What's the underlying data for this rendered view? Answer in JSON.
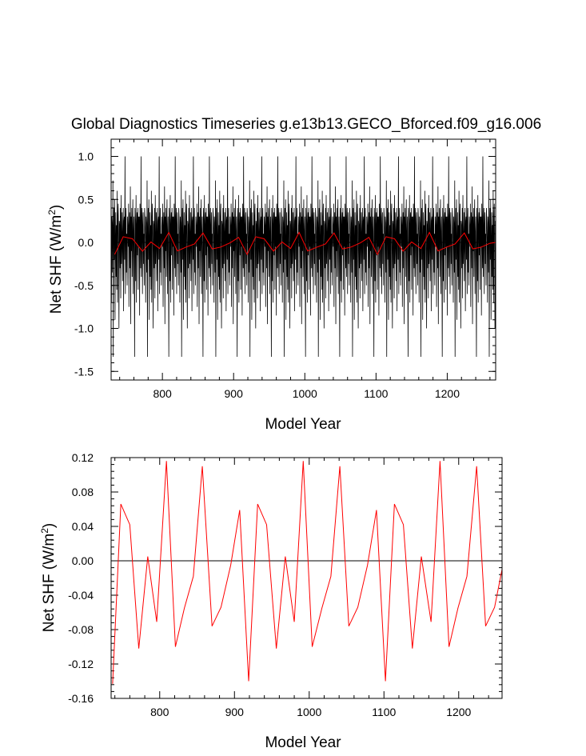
{
  "chart_data": [
    {
      "type": "line",
      "title": "Global Diagnostics Timeseries g.e13b13.GECO_Bforced.f09_g16.006",
      "xlabel": "Model Year",
      "ylabel": "Net SHF (W/m",
      "ylabel_sup": "2",
      "ylabel_close": ")",
      "xlim": [
        728,
        1268
      ],
      "ylim": [
        -1.6,
        1.2
      ],
      "x_ticks": [
        800,
        900,
        1000,
        1100,
        1200
      ],
      "x_tick_labels": [
        "800",
        "900",
        "1000",
        "1100",
        "1200"
      ],
      "y_ticks": [
        1.0,
        0.5,
        0.0,
        -0.5,
        -1.0,
        -1.5
      ],
      "y_tick_labels": [
        "1.0",
        "0.5",
        "0.0",
        "-0.5",
        "-1.0",
        "-1.5"
      ],
      "reference_line": 0,
      "series": [
        {
          "color": "#000000",
          "style": "monthly",
          "pattern_period_years": 48,
          "pattern_values": [
            0.05,
            -0.7,
            0.3,
            0.2,
            -0.35,
            0.72,
            -1.33,
            0.15,
            0.4,
            -0.2,
            0.5,
            -0.9,
            0.05,
            0.35,
            -0.4,
            0.2,
            -0.55,
            0.6,
            -0.7,
            0.3,
            0.45,
            -0.1,
            -1.0,
            0.25,
            0.2,
            -0.3,
            0.4,
            -0.65,
            0.55,
            -0.25,
            0.0,
            0.35,
            -0.45,
            0.1,
            0.4,
            -0.8,
            0.25,
            0.3,
            -0.2,
            1.0,
            -0.6,
            0.2,
            0.4,
            -0.35,
            0.1,
            -0.5,
            0.3,
            0.15,
            -0.05,
            0.45,
            -0.75,
            0.2,
            0.35,
            -0.3,
            0.65,
            -0.95,
            0.3,
            -0.1,
            0.4,
            -0.4,
            0.2,
            0.5,
            -0.6,
            0.1,
            0.3,
            -0.2,
            -1.33,
            0.4,
            0.25,
            -0.45,
            0.55,
            -0.7,
            0.2,
            0.35,
            -0.15,
            0.4,
            -0.55,
            0.3,
            -0.05,
            0.3,
            -0.85,
            0.45,
            0.15,
            -0.3,
            1.0,
            -0.4,
            0.25,
            0.4,
            -0.6,
            0.2,
            0.35,
            -0.25,
            0.1,
            -0.5,
            0.4,
            0.3
          ]
        },
        {
          "color": "#ff0000",
          "style": "annual",
          "x": [
            733,
            745,
            758,
            772,
            784,
            796,
            809,
            821,
            833,
            845,
            857,
            870,
            882,
            895,
            907,
            919,
            931,
            943,
            956,
            968,
            980,
            992,
            1004,
            1017,
            1029,
            1041,
            1053,
            1065,
            1078,
            1090,
            1102,
            1114,
            1126,
            1138,
            1150,
            1163,
            1175,
            1187,
            1199,
            1211,
            1224,
            1236,
            1248,
            1260,
            1268
          ],
          "y": [
            -0.14,
            0.066,
            0.042,
            -0.102,
            0.005,
            -0.071,
            0.116,
            -0.1,
            -0.055,
            -0.018,
            0.11,
            -0.076,
            -0.054,
            -0.005,
            0.059,
            -0.14,
            0.066,
            0.042,
            -0.102,
            0.005,
            -0.071,
            0.116,
            -0.1,
            -0.055,
            -0.018,
            0.11,
            -0.076,
            -0.054,
            -0.005,
            0.059,
            -0.14,
            0.066,
            0.042,
            -0.102,
            0.005,
            -0.071,
            0.116,
            -0.1,
            -0.055,
            -0.018,
            0.11,
            -0.076,
            -0.054,
            -0.01,
            0.0
          ]
        }
      ]
    },
    {
      "type": "line",
      "xlabel": "Model Year",
      "ylabel": "Net SHF (W/m",
      "ylabel_sup": "2",
      "ylabel_close": ")",
      "xlim": [
        735,
        1258
      ],
      "ylim": [
        -0.16,
        0.12
      ],
      "x_ticks": [
        800,
        900,
        1000,
        1100,
        1200
      ],
      "x_tick_labels": [
        "800",
        "900",
        "1000",
        "1100",
        "1200"
      ],
      "y_ticks": [
        0.12,
        0.08,
        0.04,
        0.0,
        -0.04,
        -0.08,
        -0.12,
        -0.16
      ],
      "y_tick_labels": [
        "0.12",
        "0.08",
        "0.04",
        "0.00",
        "-0.04",
        "-0.08",
        "-0.12",
        "-0.16"
      ],
      "reference_line": 0,
      "series": [
        {
          "color": "#ff0000",
          "x": [
            737,
            748,
            760,
            772,
            784,
            796,
            809,
            821,
            833,
            845,
            857,
            870,
            882,
            895,
            907,
            919,
            931,
            943,
            956,
            968,
            980,
            992,
            1004,
            1017,
            1029,
            1041,
            1053,
            1065,
            1078,
            1090,
            1102,
            1114,
            1126,
            1138,
            1150,
            1163,
            1175,
            1187,
            1199,
            1211,
            1224,
            1236,
            1248,
            1258
          ],
          "y": [
            -0.143,
            0.066,
            0.042,
            -0.102,
            0.005,
            -0.071,
            0.116,
            -0.1,
            -0.055,
            -0.018,
            0.11,
            -0.076,
            -0.054,
            -0.005,
            0.059,
            -0.14,
            0.066,
            0.042,
            -0.102,
            0.005,
            -0.071,
            0.116,
            -0.1,
            -0.055,
            -0.018,
            0.11,
            -0.076,
            -0.054,
            -0.005,
            0.059,
            -0.14,
            0.066,
            0.042,
            -0.102,
            0.005,
            -0.071,
            0.116,
            -0.1,
            -0.055,
            -0.018,
            0.11,
            -0.076,
            -0.054,
            -0.01
          ]
        }
      ]
    }
  ]
}
